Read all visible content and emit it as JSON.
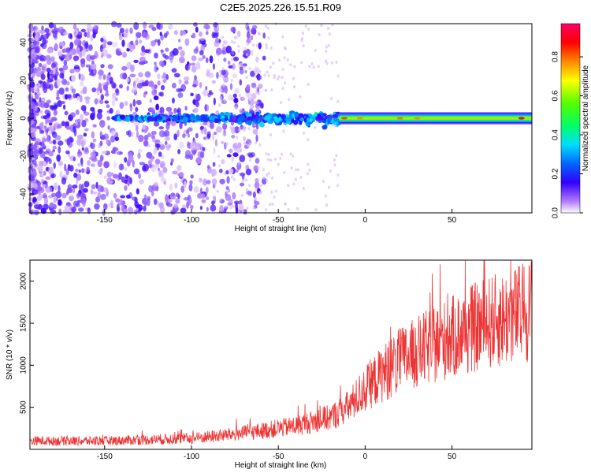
{
  "title": "C2E5.2025.226.15.51.R09",
  "chart_data": [
    {
      "type": "heatmap",
      "xlabel": "Height of straight line (km)",
      "ylabel": "Frequency (Hz)",
      "xlim": [
        -193,
        96
      ],
      "ylim": [
        -50,
        50
      ],
      "x_ticks": [
        -150,
        -100,
        -50,
        0,
        50
      ],
      "y_ticks": [
        -40,
        -20,
        0,
        20,
        40
      ],
      "colorbar": {
        "label": "Normalized spectral amplitude",
        "range": [
          0.0,
          0.97
        ],
        "ticks": [
          0.0,
          0.2,
          0.4,
          0.6,
          0.8
        ]
      },
      "features": [
        {
          "x_range": [
            -193,
            -60
          ],
          "description_values": {
            "amplitude_level": 0.05
          }
        },
        {
          "x_range": [
            -145,
            -15
          ],
          "frequency_center": 0,
          "amplitude_level": 0.25
        },
        {
          "x_range": [
            -15,
            96
          ],
          "frequency_center": 0,
          "amplitude_level": 0.55
        }
      ]
    },
    {
      "type": "line",
      "xlabel": "Height of straight line (km)",
      "ylabel": "SNR (10 * v/v)",
      "xlim": [
        -193,
        96
      ],
      "ylim": [
        0,
        2250
      ],
      "x_ticks": [
        -150,
        -100,
        -50,
        0,
        50
      ],
      "y_ticks": [
        500,
        1000,
        1500,
        2000
      ],
      "series": [
        {
          "color": "#ee3333",
          "x": [
            -193,
            -150,
            -100,
            -80,
            -60,
            -40,
            -20,
            -10,
            0,
            10,
            20,
            30,
            40,
            50,
            60,
            70,
            80,
            90,
            96
          ],
          "y": [
            100,
            100,
            130,
            170,
            220,
            280,
            380,
            500,
            720,
            900,
            1050,
            1150,
            1250,
            1330,
            1420,
            1500,
            1550,
            1620,
            1680
          ]
        }
      ]
    }
  ],
  "colors": {
    "line": "#ee3333",
    "axis": "#000000",
    "background": "#ffffff"
  }
}
